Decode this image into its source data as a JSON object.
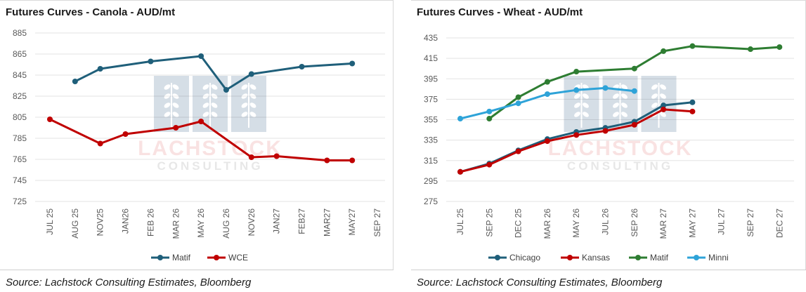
{
  "charts": [
    {
      "title": "Futures Curves - Canola - AUD/mt",
      "source": "Source: Lachstock Consulting Estimates, Bloomberg"
    },
    {
      "title": "Futures Curves - Wheat - AUD/mt",
      "source": "Source: Lachstock Consulting Estimates, Bloomberg"
    }
  ],
  "watermark": {
    "name": "LACHSTOCK",
    "sub": "CONSULTING"
  },
  "chart_data": [
    {
      "type": "line",
      "title": "Futures Curves - Canola - AUD/mt",
      "xlabel": "",
      "ylabel": "",
      "categories": [
        "JUL 25",
        "AUG 25",
        "NOV25",
        "JAN26",
        "FEB 26",
        "MAR 26",
        "MAY 26",
        "AUG 26",
        "NOV26",
        "JAN27",
        "FEB27",
        "MAR27",
        "MAY27",
        "SEP 27"
      ],
      "ylim": [
        725,
        885
      ],
      "yticks": [
        725,
        745,
        765,
        785,
        805,
        825,
        845,
        865,
        885
      ],
      "grid": "horizontal",
      "legend": "bottom",
      "series": [
        {
          "name": "Matif",
          "color": "#1f5f7a",
          "values": [
            null,
            839,
            851,
            null,
            858,
            null,
            863,
            831,
            846,
            null,
            853,
            null,
            856,
            null
          ]
        },
        {
          "name": "WCE",
          "color": "#c00000",
          "values": [
            803,
            null,
            780,
            789,
            null,
            795,
            801,
            null,
            767,
            768,
            null,
            764,
            764,
            null
          ]
        }
      ]
    },
    {
      "type": "line",
      "title": "Futures Curves - Wheat - AUD/mt",
      "xlabel": "",
      "ylabel": "",
      "categories": [
        "JUL 25",
        "SEP 25",
        "DEC 25",
        "MAR 26",
        "MAY 26",
        "JUL 26",
        "SEP 26",
        "MAR 27",
        "MAY 27",
        "JUL 27",
        "SEP 27",
        "DEC 27"
      ],
      "ylim": [
        275,
        435
      ],
      "yticks": [
        275,
        295,
        315,
        335,
        355,
        375,
        395,
        415,
        435
      ],
      "grid": "horizontal",
      "legend": "bottom",
      "series": [
        {
          "name": "Chicago",
          "color": "#1f5f7a",
          "values": [
            304,
            312,
            325,
            336,
            343,
            347,
            353,
            369,
            372,
            null,
            null,
            null
          ]
        },
        {
          "name": "Kansas",
          "color": "#c00000",
          "values": [
            304,
            311,
            324,
            334,
            340,
            344,
            350,
            365,
            363,
            null,
            null,
            null
          ]
        },
        {
          "name": "Matif",
          "color": "#2e7d32",
          "values": [
            null,
            356,
            377,
            392,
            402,
            null,
            405,
            422,
            427,
            null,
            424,
            426
          ]
        },
        {
          "name": "Minni",
          "color": "#2ea3d8",
          "values": [
            356,
            363,
            371,
            380,
            384,
            386,
            383,
            null,
            null,
            null,
            null,
            null
          ]
        }
      ]
    }
  ]
}
